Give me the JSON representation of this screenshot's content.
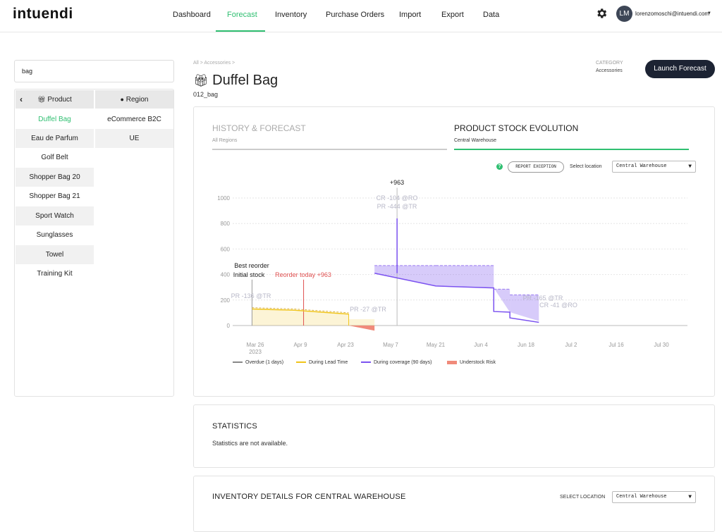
{
  "app": {
    "logo": "intuendi",
    "nav": [
      "Dashboard",
      "Forecast",
      "Inventory",
      "Purchase Orders",
      "Import",
      "Export",
      "Data"
    ],
    "active_nav": "Forecast",
    "user_initials": "LM",
    "user_email": "lorenzomoschi@intuendi.com",
    "accent_color": "#2fbf71"
  },
  "sidebar": {
    "search_value": "bag",
    "product_header": "Product",
    "region_header": "Region",
    "products": [
      "Duffel Bag",
      "Eau de Parfum",
      "Golf Belt",
      "Shopper Bag 20",
      "Shopper Bag 21",
      "Sport Watch",
      "Sunglasses",
      "Towel",
      "Training Kit"
    ],
    "selected_product": "Duffel Bag",
    "regions": [
      "eCommerce B2C",
      "UE"
    ]
  },
  "header": {
    "breadcrumb": "All > Accessories >",
    "category_label": "CATEGORY",
    "category_value": "Accessories",
    "launch_button": "Launch Forecast",
    "title": "Duffel Bag",
    "sku": "012_bag"
  },
  "forecast_card": {
    "tab1_title": "HISTORY & FORECAST",
    "tab1_sub": "All Regions",
    "tab2_title": "PRODUCT STOCK EVOLUTION",
    "tab2_sub": "Central Warehouse",
    "help": "?",
    "report_button": "REPORT EXCEPTION",
    "location_label": "Select location",
    "location_value": "Central Warehouse"
  },
  "chart_data": {
    "type": "area",
    "y_ticks": [
      "0",
      "200",
      "400",
      "600",
      "800",
      "1000"
    ],
    "ylim": [
      0,
      1000
    ],
    "x_ticks": [
      "Mar 26",
      "Apr 9",
      "Apr 23",
      "May 7",
      "May 21",
      "Jun 4",
      "Jun 18",
      "Jul 2",
      "Jul 16",
      "Jul 30"
    ],
    "x_subtick": "2023",
    "annotations": {
      "peak": "+963",
      "cr1": "CR -104 @RO",
      "pr1": "PR -444 @TR",
      "best_reorder": "Best reorder",
      "initial_stock": "Initial stock",
      "reorder_today": "Reorder today +963",
      "pr_initial": "PR -136 @TR",
      "pr_small": "PR -27 @TR",
      "pr_late": "PR -165 @TR",
      "cr_late": "CR -41 @RO"
    },
    "series": [
      {
        "name": "Overdue (1 days)",
        "color": "#888888"
      },
      {
        "name": "During Lead Time",
        "color": "#f0c419"
      },
      {
        "name": "During coverage (90 days)",
        "color": "#7b52f0"
      },
      {
        "name": "Understock Risk",
        "color": "#f08a7a"
      }
    ],
    "lead_time_points": [
      [
        -1,
        130
      ],
      [
        12,
        120
      ],
      [
        29,
        90
      ]
    ],
    "coverage_points": [
      [
        37,
        410
      ],
      [
        56,
        310
      ],
      [
        74,
        295
      ],
      [
        88,
        35
      ]
    ],
    "understock_points": [
      [
        29,
        -5
      ],
      [
        37,
        -40
      ]
    ],
    "grid": true
  },
  "statistics": {
    "title": "STATISTICS",
    "text": "Statistics are not available."
  },
  "inventory_details": {
    "title": "INVENTORY DETAILS FOR CENTRAL WAREHOUSE",
    "location_label": "SELECT LOCATION",
    "location_value": "Central Warehouse"
  }
}
